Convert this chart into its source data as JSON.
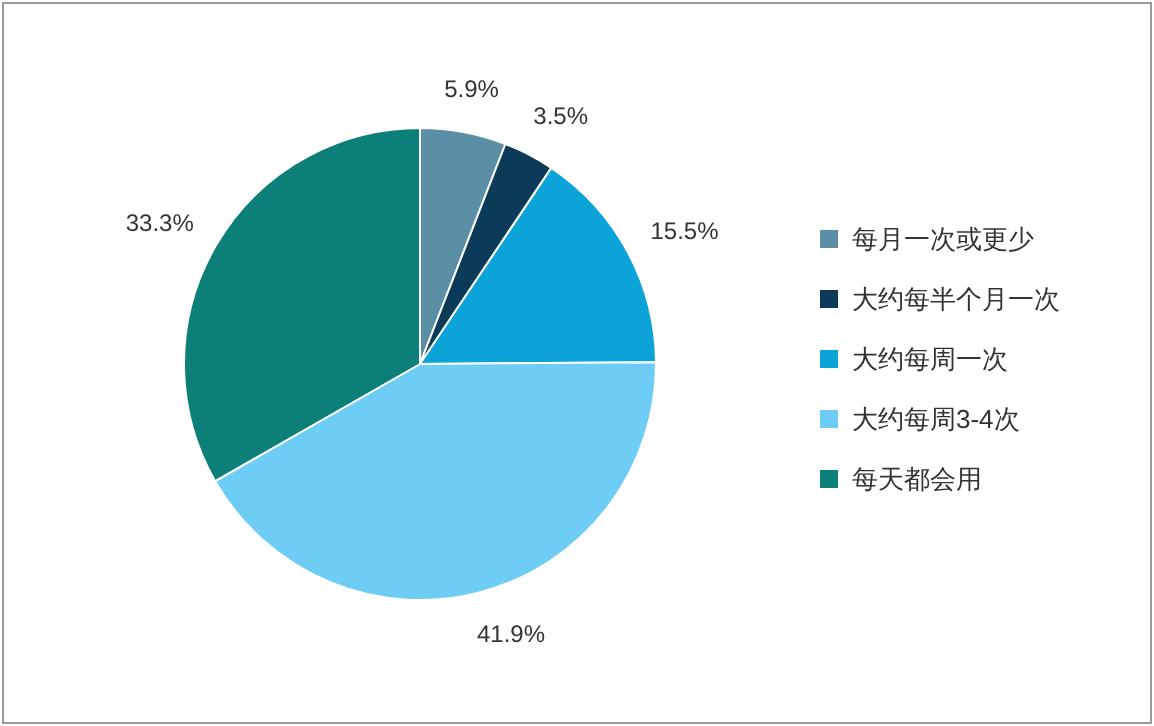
{
  "chart_data": {
    "type": "pie",
    "categories": [
      "每月一次或更少",
      "大约每半个月一次",
      "大约每周一次",
      "大约每周3-4次",
      "每天都会用"
    ],
    "values": [
      5.9,
      3.5,
      15.5,
      41.9,
      33.3
    ],
    "colors": [
      "#5b8fa5",
      "#0c3b5a",
      "#0ca3d9",
      "#6dcdf4",
      "#0b7f78"
    ],
    "value_labels": [
      "5.9%",
      "3.5%",
      "15.5%",
      "41.9%",
      "33.3%"
    ],
    "legend": "right"
  }
}
